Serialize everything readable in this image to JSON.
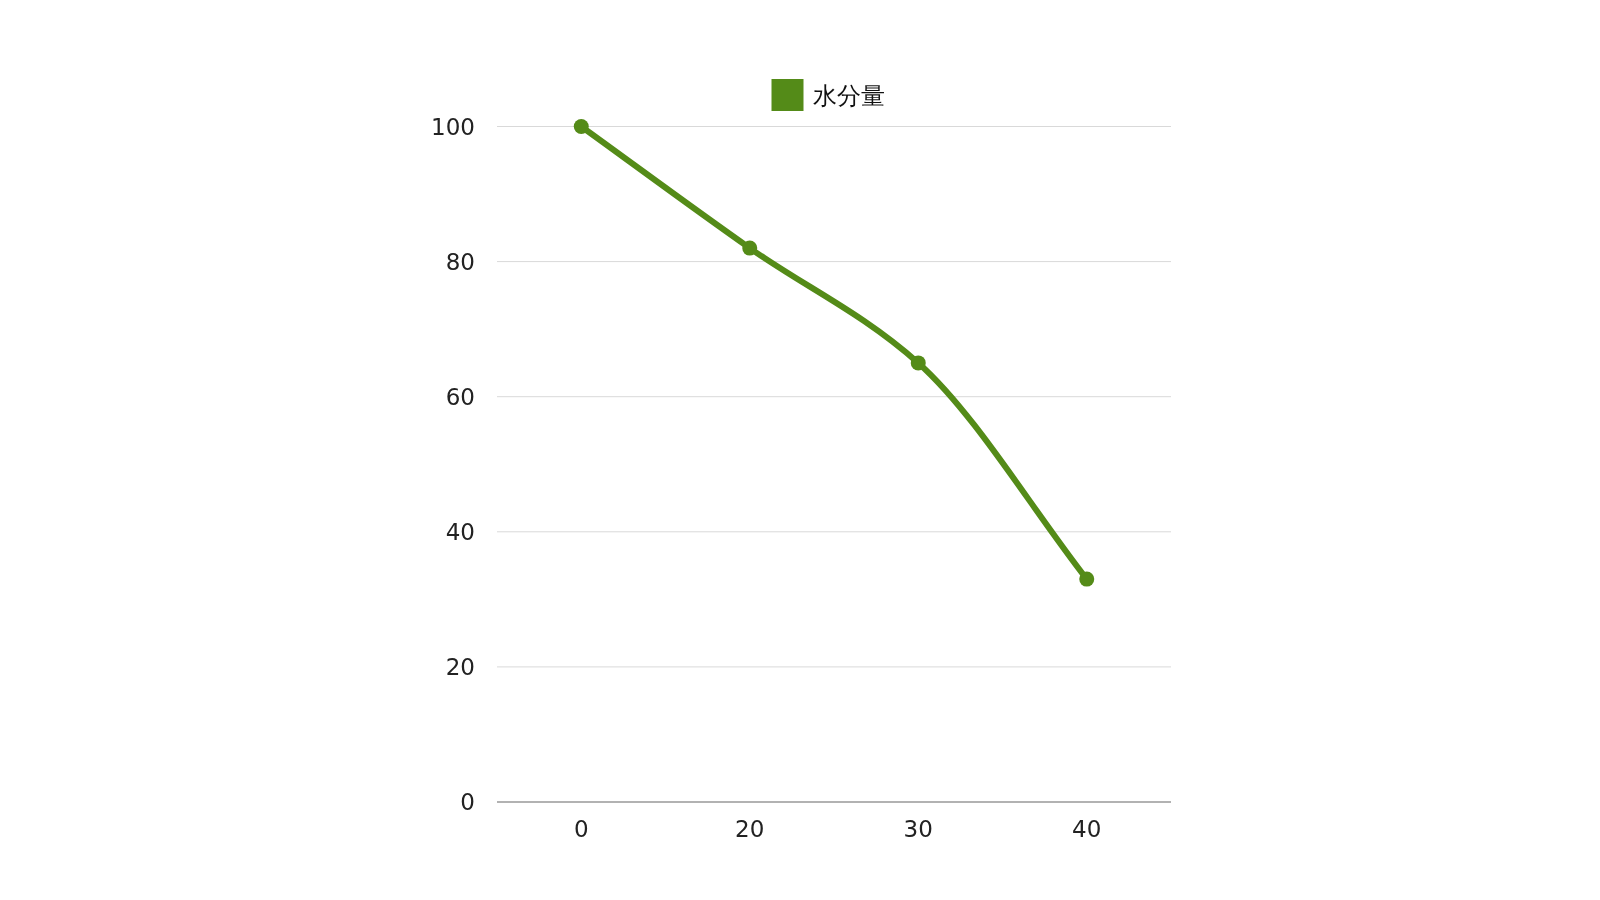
{
  "chart_data": {
    "type": "line",
    "categories": [
      "0",
      "20",
      "30",
      "40"
    ],
    "series": [
      {
        "name": "水分量",
        "color": "#548b18",
        "values": [
          100,
          82,
          65,
          33
        ]
      }
    ],
    "ylim": [
      0,
      100
    ],
    "yticks": [
      0,
      20,
      40,
      60,
      80,
      100
    ],
    "grid": "y",
    "legend": "top",
    "marker": "circle",
    "line_style": "solid"
  }
}
